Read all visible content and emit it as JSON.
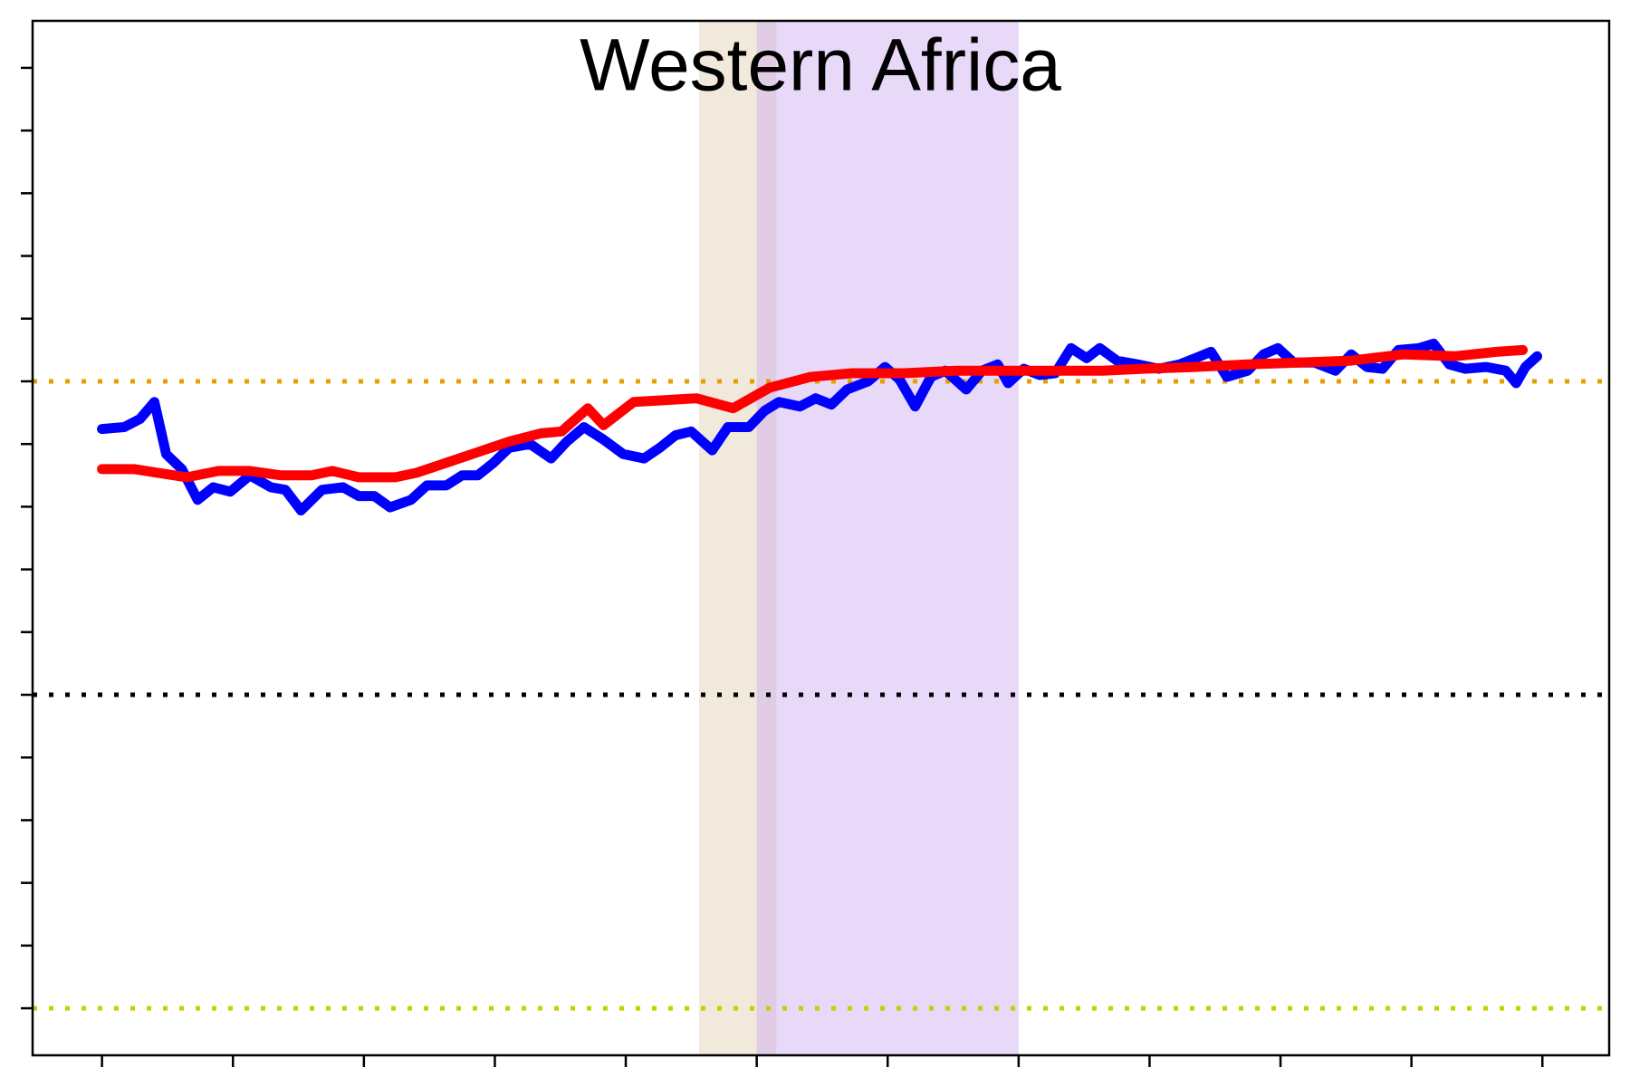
{
  "chart_data": {
    "type": "line",
    "title": "Western Africa",
    "xlim": [
      -0.53,
      11.51
    ],
    "xticks": [
      0,
      1,
      2,
      3,
      4,
      5,
      6,
      7,
      8,
      9,
      10,
      11
    ],
    "ylim": [
      -0.75,
      15.75
    ],
    "yticks": [
      0,
      1,
      2,
      3,
      4,
      5,
      6,
      7,
      8,
      9,
      10,
      11,
      12,
      13,
      14,
      15
    ],
    "shaded_regions": [
      {
        "xlim": [
          4.56,
          5.15
        ],
        "color": "#d9c8a8"
      },
      {
        "xlim": [
          5.0,
          7.0
        ],
        "color": "#c9a0f0"
      }
    ],
    "hlines": [
      {
        "value": 10,
        "color": "#e69f00"
      },
      {
        "value": 5,
        "color": "#000000"
      },
      {
        "value": 0,
        "color": "#cccc00"
      }
    ],
    "series": [
      {
        "color": "#0000ff",
        "x": [
          0,
          0.17,
          0.29,
          0.4,
          0.49,
          0.61,
          0.73,
          0.85,
          0.98,
          1.13,
          1.29,
          1.4,
          1.52,
          1.68,
          1.84,
          1.96,
          2.08,
          2.2,
          2.36,
          2.48,
          2.63,
          2.75,
          2.87,
          2.99,
          3.11,
          3.27,
          3.43,
          3.55,
          3.68,
          3.83,
          3.98,
          4.14,
          4.26,
          4.38,
          4.5,
          4.66,
          4.78,
          4.94,
          5.06,
          5.17,
          5.33,
          5.45,
          5.57,
          5.69,
          5.85,
          5.98,
          6.09,
          6.21,
          6.33,
          6.44,
          6.6,
          6.72,
          6.84,
          6.92,
          7.04,
          7.16,
          7.28,
          7.4,
          7.52,
          7.62,
          7.75,
          7.91,
          8.07,
          8.23,
          8.35,
          8.47,
          8.59,
          8.75,
          8.87,
          8.98,
          9.1,
          9.26,
          9.42,
          9.54,
          9.66,
          9.78,
          9.9,
          10.06,
          10.17,
          10.29,
          10.41,
          10.57,
          10.72,
          10.8,
          10.87,
          10.96
        ],
        "values": [
          9.24,
          9.27,
          9.4,
          9.67,
          8.84,
          8.6,
          8.11,
          8.31,
          8.24,
          8.5,
          8.31,
          8.27,
          7.94,
          8.27,
          8.31,
          8.17,
          8.17,
          7.99,
          8.11,
          8.34,
          8.34,
          8.5,
          8.5,
          8.7,
          8.94,
          9.0,
          8.77,
          9.04,
          9.27,
          9.07,
          8.84,
          8.77,
          8.94,
          9.14,
          9.2,
          8.9,
          9.27,
          9.27,
          9.53,
          9.67,
          9.6,
          9.73,
          9.63,
          9.87,
          10.0,
          10.23,
          10.03,
          9.6,
          10.07,
          10.17,
          9.87,
          10.17,
          10.27,
          9.97,
          10.2,
          10.1,
          10.13,
          10.53,
          10.37,
          10.53,
          10.33,
          10.27,
          10.2,
          10.27,
          10.37,
          10.47,
          10.07,
          10.17,
          10.43,
          10.53,
          10.3,
          10.3,
          10.17,
          10.43,
          10.23,
          10.2,
          10.5,
          10.53,
          10.6,
          10.27,
          10.2,
          10.23,
          10.17,
          9.97,
          10.23,
          10.4
        ]
      },
      {
        "color": "#ff0000",
        "x": [
          0,
          0.25,
          0.49,
          0.65,
          0.89,
          1.13,
          1.37,
          1.6,
          1.76,
          1.96,
          2.24,
          2.4,
          2.63,
          2.87,
          3.11,
          3.35,
          3.51,
          3.71,
          3.83,
          4.06,
          4.3,
          4.54,
          4.82,
          5.1,
          5.41,
          5.73,
          6.13,
          6.52,
          6.92,
          7.32,
          7.64,
          7.95,
          8.35,
          8.75,
          9.14,
          9.54,
          9.94,
          10.33,
          10.65,
          10.85
        ],
        "values": [
          8.6,
          8.6,
          8.52,
          8.47,
          8.57,
          8.57,
          8.5,
          8.5,
          8.57,
          8.47,
          8.47,
          8.54,
          8.7,
          8.87,
          9.04,
          9.17,
          9.2,
          9.57,
          9.3,
          9.67,
          9.7,
          9.73,
          9.57,
          9.9,
          10.07,
          10.13,
          10.13,
          10.17,
          10.17,
          10.17,
          10.17,
          10.2,
          10.23,
          10.27,
          10.3,
          10.33,
          10.43,
          10.4,
          10.47,
          10.5
        ]
      }
    ]
  }
}
